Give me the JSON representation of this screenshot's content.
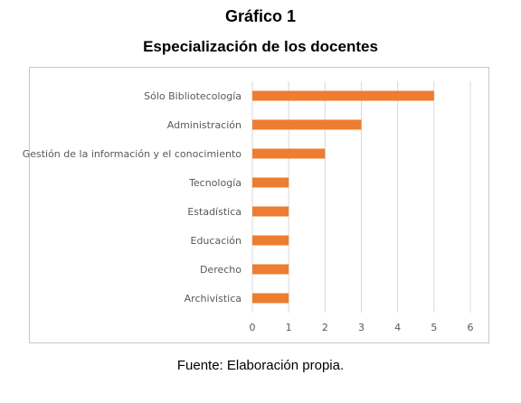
{
  "header": {
    "figure_label": "Gráfico 1",
    "title": "Especialización de los docentes"
  },
  "source": "Fuente: Elaboración propia.",
  "chart_data": {
    "type": "bar",
    "orientation": "horizontal",
    "categories": [
      "Sólo Bibliotecología",
      "Administración",
      "Gestión de la información y el conocimiento",
      "Tecnología",
      "Estadística",
      "Educación",
      "Derecho",
      "Archivística"
    ],
    "values": [
      5,
      3,
      2,
      1,
      1,
      1,
      1,
      1
    ],
    "xlim": [
      0,
      6
    ],
    "xticks": [
      0,
      1,
      2,
      3,
      4,
      5,
      6
    ],
    "grid": "vertical",
    "bar_color": "#ED7D31",
    "grid_color": "#d9d9d9",
    "legend": "none"
  }
}
